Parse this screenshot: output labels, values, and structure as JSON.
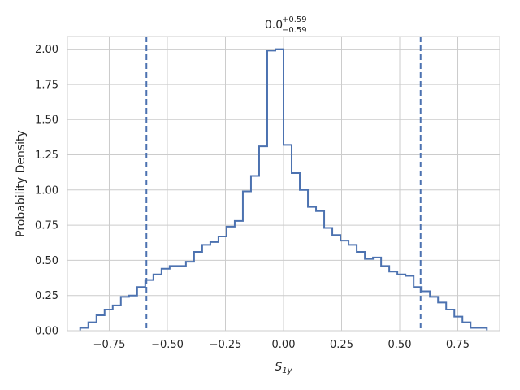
{
  "chart_data": {
    "type": "histogram-step",
    "title": {
      "value": "0.0",
      "sup": "+0.59",
      "sub": "−0.59"
    },
    "xlabel": {
      "main": "S",
      "sub": "1y"
    },
    "ylabel": "Probability Density",
    "xlim": [
      -0.93,
      0.93
    ],
    "ylim": [
      0,
      2.09
    ],
    "xticks": [
      -0.75,
      -0.5,
      -0.25,
      0.0,
      0.25,
      0.5,
      0.75
    ],
    "xtick_labels": [
      "−0.75",
      "−0.50",
      "−0.25",
      "0.00",
      "0.25",
      "0.50",
      "0.75"
    ],
    "yticks": [
      0.0,
      0.25,
      0.5,
      0.75,
      1.0,
      1.25,
      1.5,
      1.75,
      2.0
    ],
    "ytick_labels": [
      "0.00",
      "0.25",
      "0.50",
      "0.75",
      "1.00",
      "1.25",
      "1.50",
      "1.75",
      "2.00"
    ],
    "grid": true,
    "color": "#4c72b0",
    "grid_color": "#cccccc",
    "vlines": [
      -0.59,
      0.59
    ],
    "bin_edges": [
      -0.875,
      -0.84,
      -0.805,
      -0.77,
      -0.735,
      -0.7,
      -0.665,
      -0.63,
      -0.595,
      -0.56,
      -0.525,
      -0.49,
      -0.455,
      -0.42,
      -0.385,
      -0.35,
      -0.315,
      -0.28,
      -0.245,
      -0.21,
      -0.175,
      -0.14,
      -0.105,
      -0.07,
      -0.035,
      0.0,
      0.035,
      0.07,
      0.105,
      0.14,
      0.175,
      0.21,
      0.245,
      0.28,
      0.315,
      0.35,
      0.385,
      0.42,
      0.455,
      0.49,
      0.525,
      0.56,
      0.595,
      0.63,
      0.665,
      0.7,
      0.735,
      0.77,
      0.805,
      0.84,
      0.875
    ],
    "densities": [
      0.02,
      0.06,
      0.11,
      0.15,
      0.18,
      0.24,
      0.25,
      0.31,
      0.36,
      0.4,
      0.44,
      0.46,
      0.46,
      0.49,
      0.56,
      0.61,
      0.63,
      0.67,
      0.74,
      0.78,
      0.99,
      1.1,
      1.31,
      1.99,
      2.0,
      1.32,
      1.12,
      1.0,
      0.88,
      0.85,
      0.73,
      0.68,
      0.64,
      0.61,
      0.56,
      0.51,
      0.52,
      0.46,
      0.42,
      0.4,
      0.39,
      0.31,
      0.28,
      0.24,
      0.2,
      0.15,
      0.1,
      0.06,
      0.02,
      0.02
    ]
  }
}
